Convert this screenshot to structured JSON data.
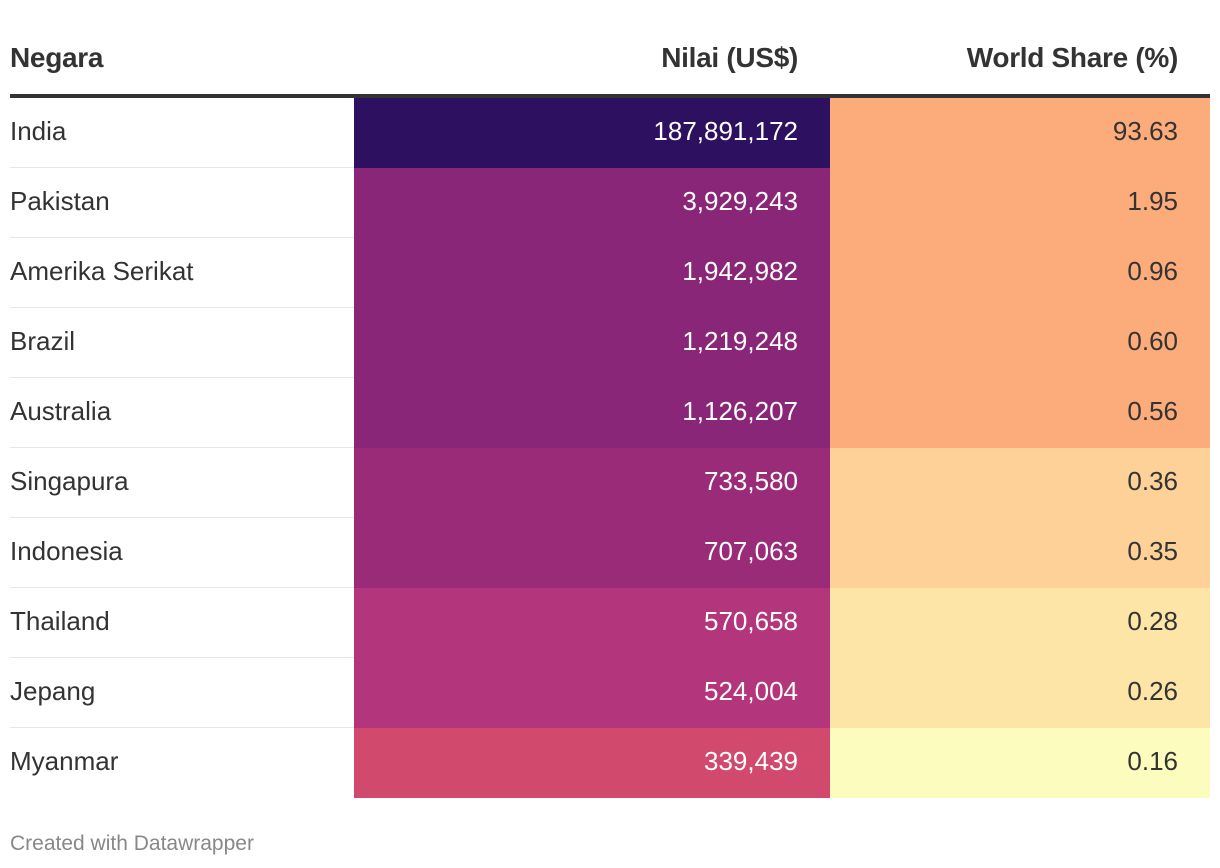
{
  "chart_data": {
    "type": "table",
    "columns": [
      "Negara",
      "Nilai (US$)",
      "World Share (%)"
    ],
    "rows": [
      {
        "country": "India",
        "value": "187,891,172",
        "share": "93.63",
        "value_color": "#2d1160",
        "share_color": "#fcab7a"
      },
      {
        "country": "Pakistan",
        "value": "3,929,243",
        "share": "1.95",
        "value_color": "#8a2677",
        "share_color": "#fcab7a"
      },
      {
        "country": "Amerika Serikat",
        "value": "1,942,982",
        "share": "0.96",
        "value_color": "#8a2677",
        "share_color": "#fcab7a"
      },
      {
        "country": "Brazil",
        "value": "1,219,248",
        "share": "0.60",
        "value_color": "#8a2677",
        "share_color": "#fcab7a"
      },
      {
        "country": "Australia",
        "value": "1,126,207",
        "share": "0.56",
        "value_color": "#8a2677",
        "share_color": "#fcab7a"
      },
      {
        "country": "Singapura",
        "value": "733,580",
        "share": "0.36",
        "value_color": "#9a2b79",
        "share_color": "#fdd197"
      },
      {
        "country": "Indonesia",
        "value": "707,063",
        "share": "0.35",
        "value_color": "#9a2b79",
        "share_color": "#fdd197"
      },
      {
        "country": "Thailand",
        "value": "570,658",
        "share": "0.28",
        "value_color": "#b3357b",
        "share_color": "#fde4a7"
      },
      {
        "country": "Jepang",
        "value": "524,004",
        "share": "0.26",
        "value_color": "#b3357b",
        "share_color": "#fde4a7"
      },
      {
        "country": "Myanmar",
        "value": "339,439",
        "share": "0.16",
        "value_color": "#d1496d",
        "share_color": "#fcfcbf"
      }
    ]
  },
  "footer": "Created with Datawrapper"
}
